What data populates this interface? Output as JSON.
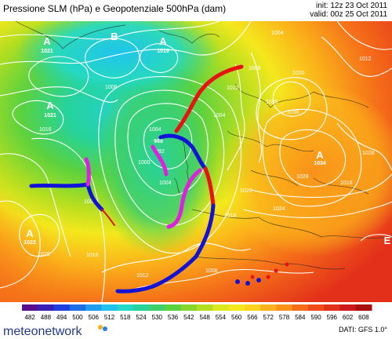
{
  "header": {
    "title": "Pressione SLM (hPa) e Geopotenziale 500hPa (dam)",
    "init": "init: 12z 23 Oct 2011",
    "valid": "valid: 00z 25 Oct 2011"
  },
  "pressure_centers": [
    {
      "type": "A",
      "value": "1021"
    },
    {
      "type": "B",
      "value": ""
    },
    {
      "type": "A",
      "value": "1019"
    },
    {
      "type": "A",
      "value": "1021"
    },
    {
      "type": "B",
      "value": "988"
    },
    {
      "type": "A",
      "value": "1034"
    },
    {
      "type": "A",
      "value": "1022"
    },
    {
      "type": "B",
      "value": "1000"
    },
    {
      "type": "B",
      "value": "1012"
    },
    {
      "type": "E",
      "value": ""
    }
  ],
  "isobar_labels": [
    "1004",
    "1008",
    "1012",
    "1016",
    "1020",
    "1024",
    "1028",
    "1032",
    "1036",
    "1000",
    "996",
    "992"
  ],
  "colorbar": {
    "values": [
      "482",
      "488",
      "494",
      "500",
      "506",
      "512",
      "518",
      "524",
      "530",
      "536",
      "542",
      "548",
      "554",
      "560",
      "566",
      "572",
      "578",
      "584",
      "590",
      "596",
      "602",
      "608"
    ],
    "colors": [
      "#5a0f8c",
      "#3c1fb4",
      "#1f3de0",
      "#1e6fe6",
      "#1f9bf0",
      "#1fc4ee",
      "#23d9c8",
      "#27d39a",
      "#3ccf6c",
      "#5bd23e",
      "#86d62b",
      "#b3de21",
      "#dbe81e",
      "#f4e81d",
      "#fbd21c",
      "#fbb21a",
      "#f9911a",
      "#f56f19",
      "#ef4c19",
      "#e3301a",
      "#cc1a1a",
      "#a80f0f"
    ]
  },
  "footer": {
    "brand": "meteonetwork",
    "source": "DATI: GFS 1.0°"
  },
  "colors": {
    "cold_front": "#1212d8",
    "warm_front": "#e81212",
    "occlusion": "#e020e0",
    "isobar": "#ffffff"
  }
}
